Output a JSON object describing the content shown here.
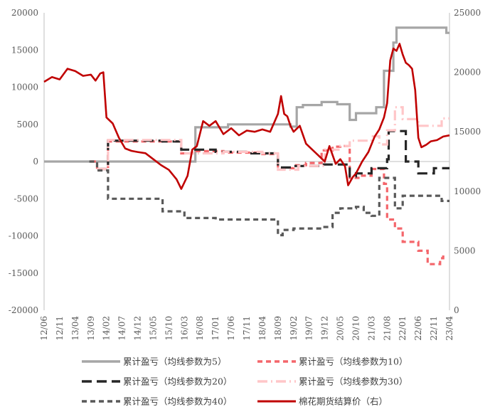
{
  "chart_data": {
    "type": "line",
    "title": "",
    "x_ticks": [
      "12/06",
      "12/11",
      "13/04",
      "13/09",
      "14/02",
      "14/07",
      "14/12",
      "15/05",
      "15/10",
      "16/03",
      "16/08",
      "17/01",
      "17/06",
      "17/11",
      "18/04",
      "18/09",
      "19/02",
      "19/07",
      "19/12",
      "20/05",
      "20/10",
      "21/03",
      "21/08",
      "22/01",
      "22/06",
      "22/11",
      "23/04"
    ],
    "y_left": {
      "min": -20000,
      "max": 20000,
      "ticks": [
        -20000,
        -15000,
        -10000,
        -5000,
        0,
        5000,
        10000,
        15000,
        20000
      ]
    },
    "y_right": {
      "min": 0,
      "max": 25000,
      "ticks": [
        0,
        5000,
        10000,
        15000,
        20000,
        25000
      ]
    },
    "grid": false,
    "legend_position": "bottom",
    "series": [
      {
        "name": "累计盈亏（均线参数为5）",
        "axis": "left",
        "color": "#a6a6a6",
        "style": "solid",
        "step": true,
        "points": [
          [
            0,
            0
          ],
          [
            9.7,
            0
          ],
          [
            9.7,
            4600
          ],
          [
            11.8,
            4600
          ],
          [
            11.8,
            5000
          ],
          [
            15.8,
            5000
          ],
          [
            15.8,
            4700
          ],
          [
            16.2,
            4700
          ],
          [
            16.2,
            7300
          ],
          [
            16.6,
            7300
          ],
          [
            16.6,
            7600
          ],
          [
            17.8,
            7600
          ],
          [
            17.8,
            8000
          ],
          [
            18.8,
            8000
          ],
          [
            18.8,
            7700
          ],
          [
            19.6,
            7700
          ],
          [
            19.6,
            5600
          ],
          [
            20.0,
            5600
          ],
          [
            20.0,
            6500
          ],
          [
            21.3,
            6500
          ],
          [
            21.3,
            7300
          ],
          [
            21.8,
            7300
          ],
          [
            21.8,
            12200
          ],
          [
            22.4,
            12200
          ],
          [
            22.4,
            16000
          ],
          [
            22.6,
            16000
          ],
          [
            22.6,
            18000
          ],
          [
            25.8,
            18000
          ],
          [
            25.8,
            17300
          ],
          [
            26,
            17300
          ]
        ]
      },
      {
        "name": "累计盈亏（均线参数为10）",
        "axis": "left",
        "color": "#f4666b",
        "style": "dash",
        "step": true,
        "points": [
          [
            3.0,
            0
          ],
          [
            3.4,
            0
          ],
          [
            3.4,
            -1000
          ],
          [
            4.1,
            -1000
          ],
          [
            4.1,
            2700
          ],
          [
            8.8,
            2700
          ],
          [
            8.8,
            1100
          ],
          [
            9.5,
            1100
          ],
          [
            9.5,
            1400
          ],
          [
            11.5,
            1400
          ],
          [
            11.5,
            1200
          ],
          [
            14.0,
            1200
          ],
          [
            14.0,
            1000
          ],
          [
            15.0,
            1000
          ],
          [
            15.0,
            -900
          ],
          [
            16.0,
            -900
          ],
          [
            16.0,
            -500
          ],
          [
            16.8,
            -500
          ],
          [
            16.8,
            -200
          ],
          [
            17.8,
            -200
          ],
          [
            17.8,
            1500
          ],
          [
            18.5,
            1500
          ],
          [
            18.5,
            2000
          ],
          [
            19.0,
            2000
          ],
          [
            19.0,
            2100
          ],
          [
            19.6,
            2100
          ],
          [
            19.6,
            -2200
          ],
          [
            20.3,
            -2200
          ],
          [
            20.3,
            -1900
          ],
          [
            21.0,
            -1900
          ],
          [
            21.0,
            -1000
          ],
          [
            21.8,
            -1000
          ],
          [
            21.8,
            -3000
          ],
          [
            22.0,
            -3000
          ],
          [
            22.0,
            -7800
          ],
          [
            22.5,
            -7800
          ],
          [
            22.5,
            -9000
          ],
          [
            23.0,
            -9000
          ],
          [
            23.0,
            -10800
          ],
          [
            24.0,
            -10800
          ],
          [
            24.0,
            -12000
          ],
          [
            24.6,
            -12000
          ],
          [
            24.6,
            -13800
          ],
          [
            25.4,
            -13800
          ],
          [
            25.4,
            -13000
          ],
          [
            25.6,
            -13000
          ],
          [
            25.6,
            -12500
          ]
        ]
      },
      {
        "name": "累计盈亏（均线参数为20）",
        "axis": "left",
        "color": "#262626",
        "style": "longdash",
        "step": true,
        "points": [
          [
            3.4,
            -1000
          ],
          [
            4.1,
            -1000
          ],
          [
            4.1,
            2800
          ],
          [
            7.6,
            2800
          ],
          [
            7.6,
            2700
          ],
          [
            8.8,
            2700
          ],
          [
            8.8,
            1600
          ],
          [
            11.0,
            1600
          ],
          [
            11.0,
            1300
          ],
          [
            13.0,
            1300
          ],
          [
            13.0,
            1100
          ],
          [
            15.0,
            1100
          ],
          [
            15.0,
            -800
          ],
          [
            16.0,
            -800
          ],
          [
            16.0,
            -600
          ],
          [
            17.8,
            -600
          ],
          [
            17.8,
            -400
          ],
          [
            19.6,
            -400
          ],
          [
            19.6,
            -2000
          ],
          [
            20.0,
            -2000
          ],
          [
            20.0,
            -1600
          ],
          [
            21.0,
            -1600
          ],
          [
            21.0,
            -900
          ],
          [
            22.0,
            -900
          ],
          [
            22.0,
            300
          ],
          [
            22.1,
            300
          ],
          [
            22.1,
            4100
          ],
          [
            23.2,
            4100
          ],
          [
            23.2,
            0
          ],
          [
            24.0,
            0
          ],
          [
            24.0,
            -1600
          ],
          [
            25.0,
            -1600
          ],
          [
            25.0,
            -900
          ],
          [
            26,
            -900
          ]
        ]
      },
      {
        "name": "累计盈亏（均线参数为30）",
        "axis": "left",
        "color": "#ffc6c8",
        "style": "dashdot",
        "step": true,
        "points": [
          [
            3.4,
            -1000
          ],
          [
            4.1,
            -1000
          ],
          [
            4.1,
            2900
          ],
          [
            8.8,
            2900
          ],
          [
            8.8,
            1100
          ],
          [
            11.5,
            1100
          ],
          [
            11.5,
            1300
          ],
          [
            14.0,
            1300
          ],
          [
            14.0,
            1100
          ],
          [
            15.0,
            1100
          ],
          [
            15.0,
            -1100
          ],
          [
            16.3,
            -1100
          ],
          [
            16.3,
            -600
          ],
          [
            18.0,
            -600
          ],
          [
            18.0,
            1600
          ],
          [
            19.0,
            1600
          ],
          [
            19.0,
            2100
          ],
          [
            19.6,
            2100
          ],
          [
            19.6,
            2800
          ],
          [
            21.0,
            2800
          ],
          [
            21.0,
            3400
          ],
          [
            21.5,
            3400
          ],
          [
            21.5,
            2300
          ],
          [
            22.0,
            2300
          ],
          [
            22.0,
            4200
          ],
          [
            22.5,
            4200
          ],
          [
            22.5,
            7300
          ],
          [
            23.0,
            7300
          ],
          [
            23.0,
            5700
          ],
          [
            24.0,
            5700
          ],
          [
            24.0,
            4800
          ],
          [
            25.5,
            4800
          ],
          [
            25.5,
            5800
          ],
          [
            26,
            5800
          ]
        ]
      },
      {
        "name": "累计盈亏（均线参数为40）",
        "axis": "left",
        "color": "#595959",
        "style": "dash",
        "step": true,
        "points": [
          [
            2.9,
            0
          ],
          [
            3.4,
            0
          ],
          [
            3.4,
            -1200
          ],
          [
            4.1,
            -1200
          ],
          [
            4.1,
            -5000
          ],
          [
            7.6,
            -5000
          ],
          [
            7.6,
            -6700
          ],
          [
            9.0,
            -6700
          ],
          [
            9.0,
            -7600
          ],
          [
            11.0,
            -7600
          ],
          [
            11.0,
            -7800
          ],
          [
            15.0,
            -7800
          ],
          [
            15.0,
            -9900
          ],
          [
            15.3,
            -9900
          ],
          [
            15.3,
            -9200
          ],
          [
            16.0,
            -9200
          ],
          [
            16.0,
            -9000
          ],
          [
            17.8,
            -9000
          ],
          [
            17.8,
            -8800
          ],
          [
            18.5,
            -8800
          ],
          [
            18.5,
            -6900
          ],
          [
            19.0,
            -6900
          ],
          [
            19.0,
            -6300
          ],
          [
            20.0,
            -6300
          ],
          [
            20.0,
            -6100
          ],
          [
            20.5,
            -6100
          ],
          [
            20.5,
            -6900
          ],
          [
            21.0,
            -6900
          ],
          [
            21.0,
            -7300
          ],
          [
            21.5,
            -7300
          ],
          [
            21.5,
            -2200
          ],
          [
            22.5,
            -2200
          ],
          [
            22.5,
            -6300
          ],
          [
            23.0,
            -6300
          ],
          [
            23.0,
            -4600
          ],
          [
            25.5,
            -4600
          ],
          [
            25.5,
            -5300
          ],
          [
            26,
            -5300
          ]
        ]
      },
      {
        "name": "棉花期货结算价（右）",
        "axis": "right",
        "color": "#c00000",
        "style": "solid",
        "step": false,
        "points": [
          [
            0,
            19200
          ],
          [
            0.5,
            19600
          ],
          [
            1.0,
            19400
          ],
          [
            1.5,
            20300
          ],
          [
            2.0,
            20100
          ],
          [
            2.5,
            19700
          ],
          [
            3.0,
            19800
          ],
          [
            3.3,
            19300
          ],
          [
            3.6,
            19900
          ],
          [
            3.8,
            20000
          ],
          [
            4.0,
            16200
          ],
          [
            4.4,
            15700
          ],
          [
            4.8,
            14500
          ],
          [
            5.2,
            13600
          ],
          [
            5.6,
            13400
          ],
          [
            6.0,
            13300
          ],
          [
            6.5,
            13200
          ],
          [
            7.0,
            12700
          ],
          [
            7.5,
            12200
          ],
          [
            8.0,
            11800
          ],
          [
            8.5,
            11000
          ],
          [
            8.8,
            10200
          ],
          [
            9.2,
            11300
          ],
          [
            9.5,
            13500
          ],
          [
            9.8,
            13800
          ],
          [
            10.2,
            15900
          ],
          [
            10.6,
            15500
          ],
          [
            11.0,
            15900
          ],
          [
            11.5,
            14800
          ],
          [
            12.0,
            15300
          ],
          [
            12.5,
            14700
          ],
          [
            13.0,
            15100
          ],
          [
            13.5,
            15000
          ],
          [
            14.0,
            15200
          ],
          [
            14.5,
            15000
          ],
          [
            15.0,
            16500
          ],
          [
            15.2,
            18000
          ],
          [
            15.4,
            16500
          ],
          [
            15.6,
            16300
          ],
          [
            15.8,
            15500
          ],
          [
            16.0,
            15000
          ],
          [
            16.4,
            15500
          ],
          [
            16.8,
            14000
          ],
          [
            17.2,
            13500
          ],
          [
            17.6,
            13000
          ],
          [
            18.0,
            12500
          ],
          [
            18.3,
            13800
          ],
          [
            18.7,
            12300
          ],
          [
            19.0,
            12700
          ],
          [
            19.3,
            12100
          ],
          [
            19.5,
            10500
          ],
          [
            19.8,
            11200
          ],
          [
            20.0,
            11500
          ],
          [
            20.4,
            12500
          ],
          [
            20.8,
            13300
          ],
          [
            21.2,
            14600
          ],
          [
            21.5,
            15200
          ],
          [
            21.8,
            16200
          ],
          [
            22.0,
            17400
          ],
          [
            22.2,
            21000
          ],
          [
            22.4,
            22000
          ],
          [
            22.6,
            21800
          ],
          [
            22.8,
            22400
          ],
          [
            23.0,
            21500
          ],
          [
            23.2,
            20800
          ],
          [
            23.4,
            20600
          ],
          [
            23.6,
            20300
          ],
          [
            23.8,
            18500
          ],
          [
            24.0,
            14500
          ],
          [
            24.2,
            13700
          ],
          [
            24.5,
            13900
          ],
          [
            24.8,
            14200
          ],
          [
            25.2,
            14300
          ],
          [
            25.6,
            14600
          ],
          [
            26.0,
            14700
          ]
        ]
      }
    ]
  }
}
